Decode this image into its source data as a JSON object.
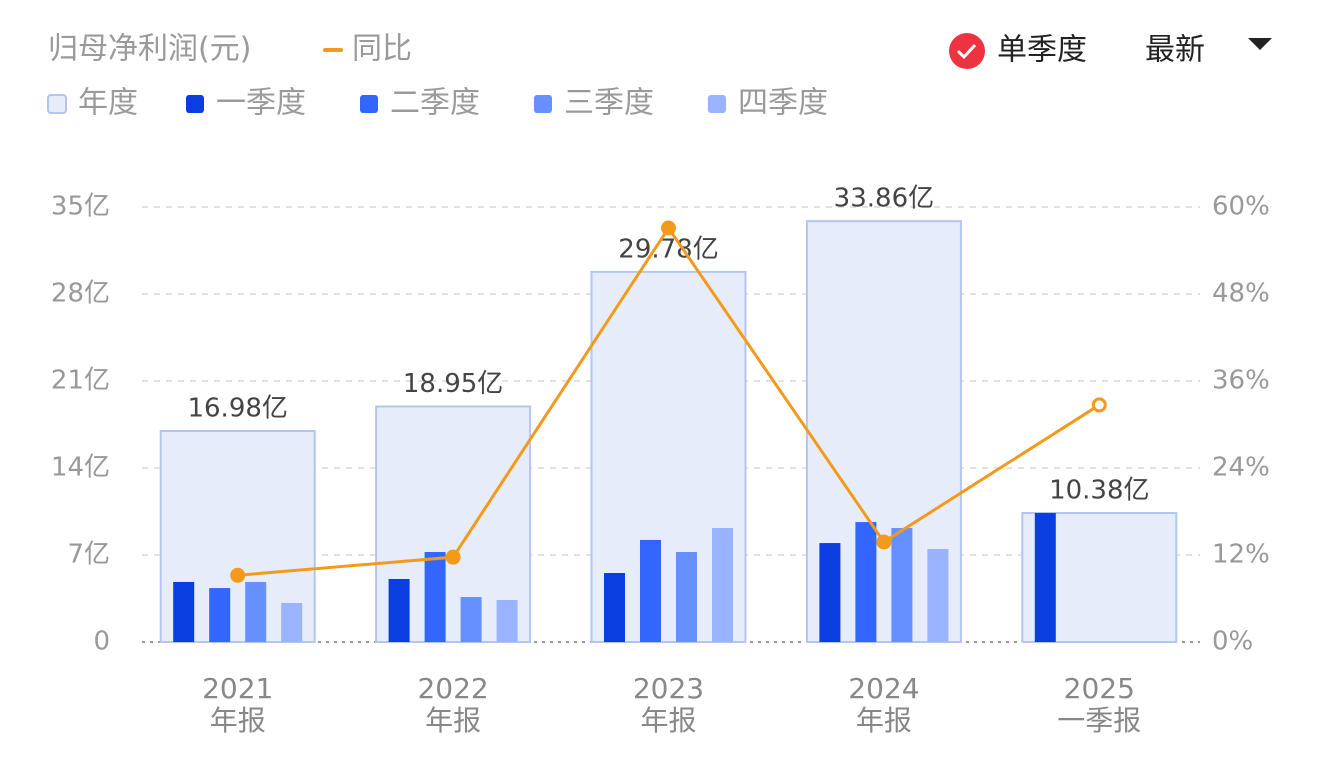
{
  "chart_data": {
    "type": "bar",
    "title": "归母净利润(元)",
    "controls": [
      "单季度",
      "最新"
    ],
    "categories": [
      "2021",
      "2022",
      "2023",
      "2024",
      "2025"
    ],
    "category_sublabels": [
      "年报",
      "年报",
      "年报",
      "年报",
      "一季报"
    ],
    "ylim": [
      0,
      35
    ],
    "yticks": [
      0,
      {
        "value": 7,
        "label": "7亿"
      },
      {
        "value": 14,
        "label": "14亿"
      },
      {
        "value": 21,
        "label": "21亿"
      },
      {
        "value": 28,
        "label": "28亿"
      },
      {
        "value": 35,
        "label": "35亿"
      }
    ],
    "y2lim": [
      0,
      60
    ],
    "y2ticks": [
      {
        "value": 0,
        "label": "0%"
      },
      {
        "value": 12,
        "label": "12%"
      },
      {
        "value": 24,
        "label": "24%"
      },
      {
        "value": 36,
        "label": "36%"
      },
      {
        "value": 48,
        "label": "48%"
      },
      {
        "value": 60,
        "label": "60%"
      }
    ],
    "grid": true,
    "series": [
      {
        "name": "年度",
        "type": "bar",
        "role": "annual",
        "color": "#e7ecfb",
        "values": [
          16.98,
          18.95,
          29.78,
          33.86,
          10.38
        ],
        "value_labels": [
          "16.98亿",
          "18.95亿",
          "29.78亿",
          "33.86亿",
          "10.38亿"
        ]
      },
      {
        "name": "一季度",
        "type": "bar",
        "color": "#0a3ee0",
        "values": [
          4.83,
          5.07,
          5.55,
          7.96,
          10.38
        ]
      },
      {
        "name": "二季度",
        "type": "bar",
        "color": "#3366ff",
        "values": [
          4.34,
          7.24,
          8.21,
          9.65,
          null
        ]
      },
      {
        "name": "三季度",
        "type": "bar",
        "color": "#6690ff",
        "values": [
          4.83,
          3.62,
          7.24,
          9.17,
          null
        ]
      },
      {
        "name": "四季度",
        "type": "bar",
        "color": "#99b3ff",
        "values": [
          3.14,
          3.38,
          9.17,
          7.48,
          null
        ]
      },
      {
        "name": "同比",
        "type": "line",
        "axis": "y2",
        "color": "#f39a1d",
        "values": [
          9.2,
          11.7,
          57.1,
          13.8,
          32.7
        ]
      }
    ]
  }
}
